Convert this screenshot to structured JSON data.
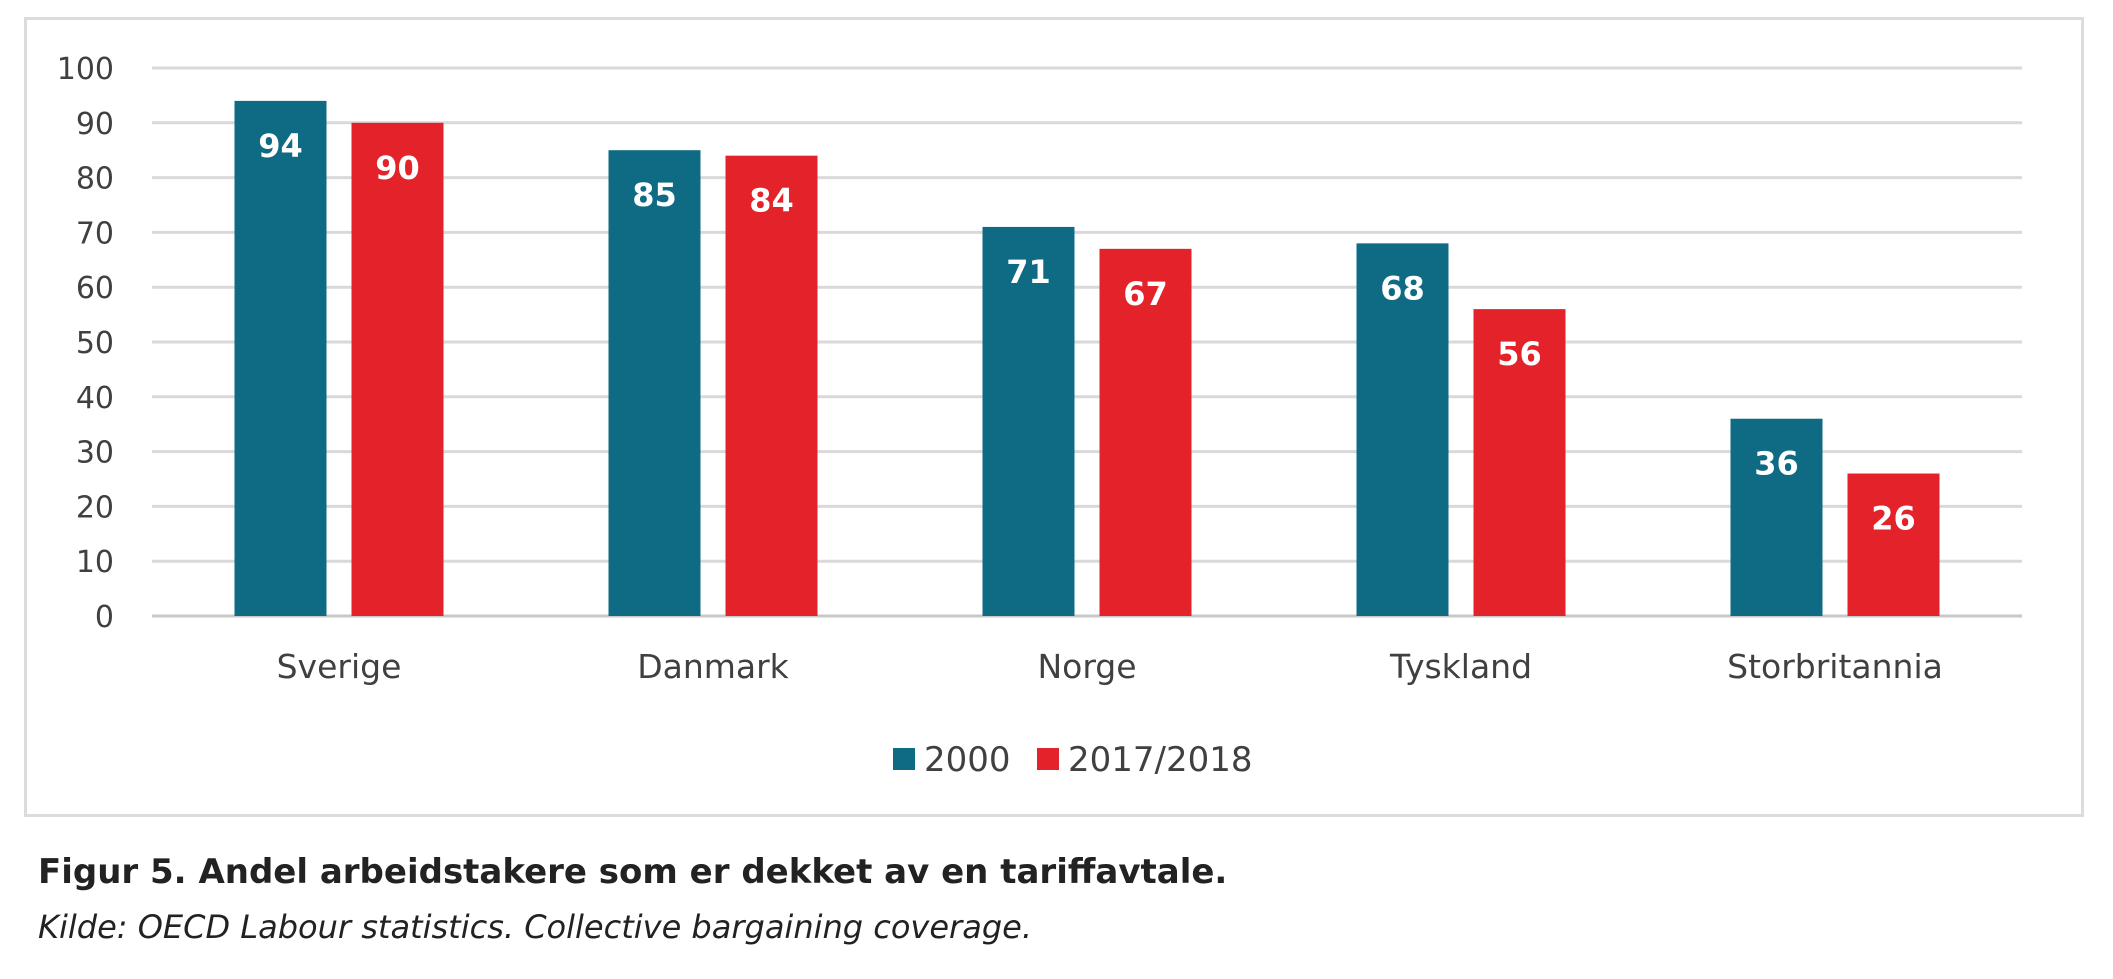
{
  "chart_data": {
    "type": "bar",
    "categories": [
      "Sverige",
      "Danmark",
      "Norge",
      "Tyskland",
      "Storbritannia"
    ],
    "series": [
      {
        "name": "2000",
        "values": [
          94,
          85,
          71,
          68,
          36
        ],
        "color": "#0f6b84"
      },
      {
        "name": "2017/2018",
        "values": [
          90,
          84,
          67,
          56,
          26
        ],
        "color": "#e32229"
      }
    ],
    "ylim": [
      0,
      100
    ],
    "yticks": [
      0,
      10,
      20,
      30,
      40,
      50,
      60,
      70,
      80,
      90,
      100
    ],
    "grid": true,
    "legend_position": "bottom-center",
    "data_labels": true
  },
  "caption": {
    "title": "Figur 5. Andel arbeidstakere som er dekket av en tariffavtale.",
    "source": "Kilde: OECD Labour statistics. Collective bargaining coverage."
  }
}
